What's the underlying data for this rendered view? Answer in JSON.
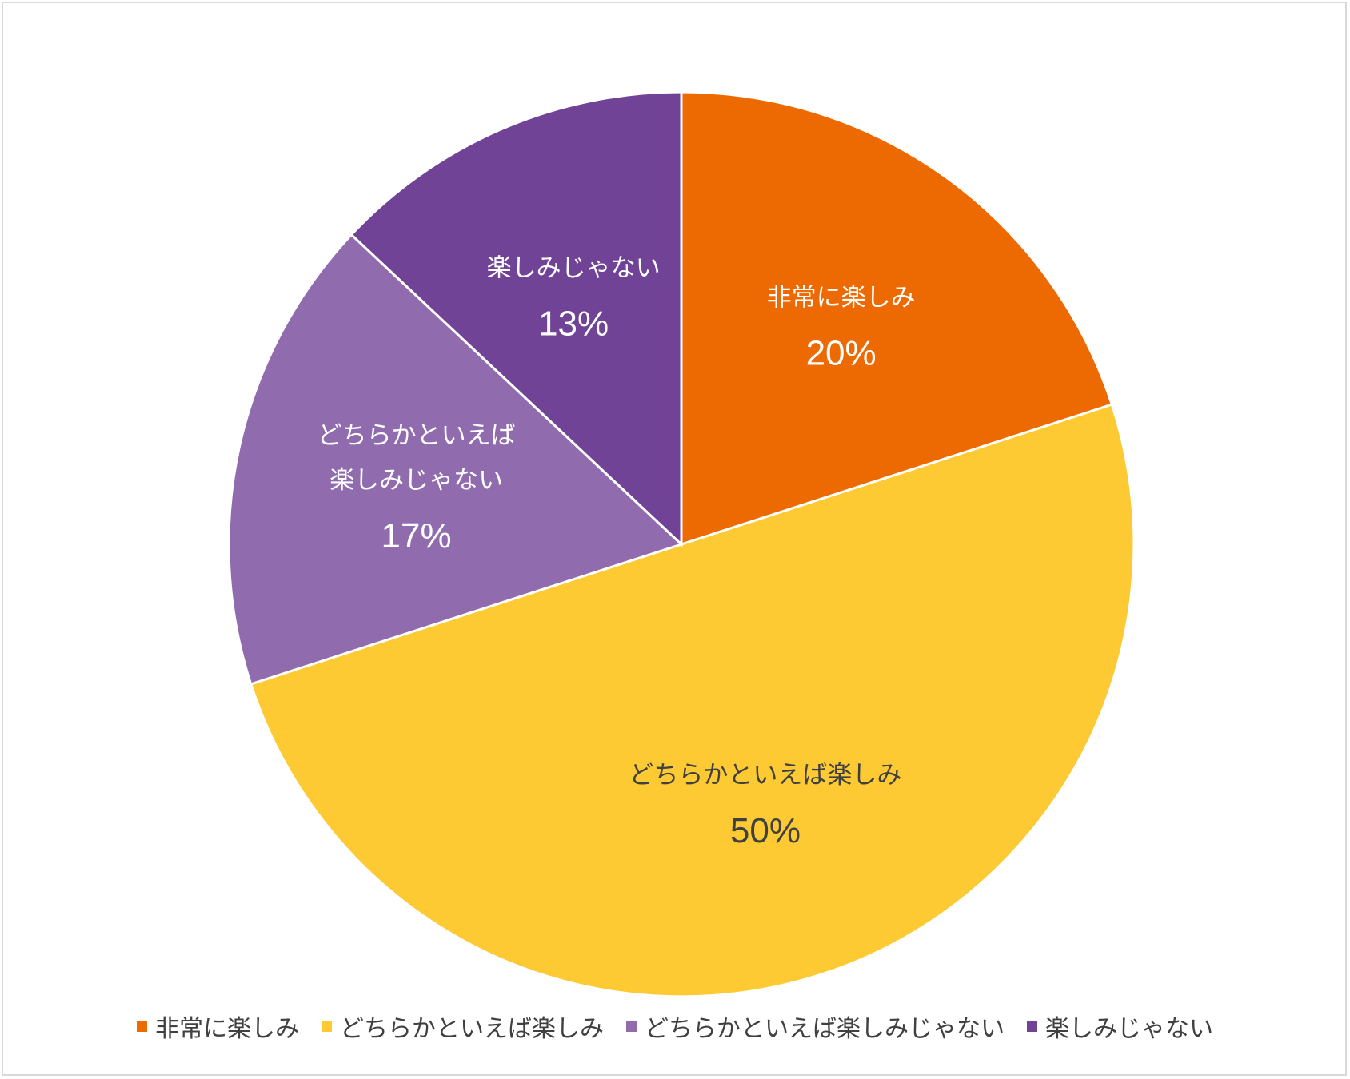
{
  "chart_data": {
    "type": "pie",
    "title": "",
    "slices": [
      {
        "label": "非常に楽しみ",
        "label_lines": [
          "非常に楽しみ"
        ],
        "value": 20,
        "percent_label": "20%",
        "color": "#ED6A02",
        "text_color": "#FFFFFF"
      },
      {
        "label": "どちらかといえば楽しみ",
        "label_lines": [
          "どちらかといえば楽しみ"
        ],
        "value": 50,
        "percent_label": "50%",
        "color": "#FDCA33",
        "text_color": "#404040"
      },
      {
        "label": "どちらかといえば楽しみじゃない",
        "label_lines": [
          "どちらかといえば",
          "楽しみじゃない"
        ],
        "value": 17,
        "percent_label": "17%",
        "color": "#906CAF",
        "text_color": "#FFFFFF"
      },
      {
        "label": "楽しみじゃない",
        "label_lines": [
          "楽しみじゃない"
        ],
        "value": 13,
        "percent_label": "13%",
        "color": "#704396",
        "text_color": "#FFFFFF"
      }
    ],
    "legend": {
      "placement": "bottom",
      "entries": [
        "非常に楽しみ",
        "どちらかといえば楽しみ",
        "どちらかといえば楽しみじゃない",
        "楽しみじゃない"
      ]
    }
  }
}
